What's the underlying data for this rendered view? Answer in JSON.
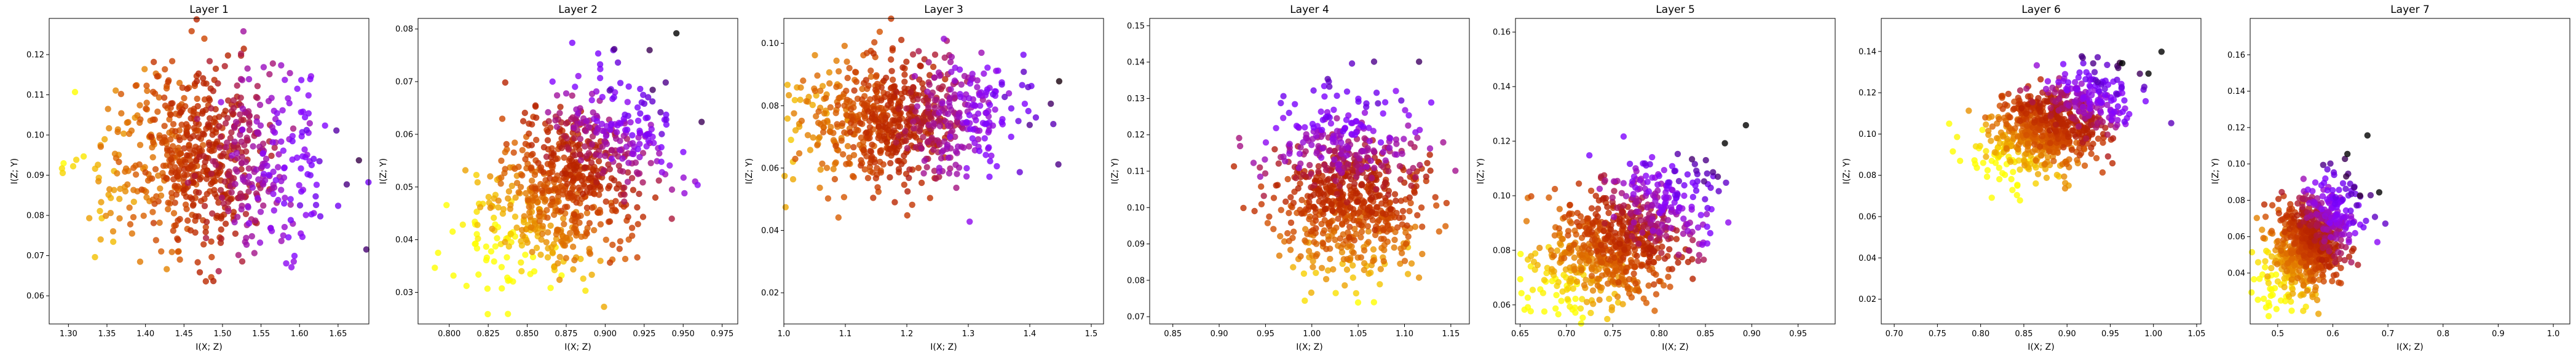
{
  "chart_data": [
    {
      "type": "scatter",
      "title": "Layer 1",
      "xlabel": "I(X; Z)",
      "ylabel": "I(Z; Y)",
      "xlim": [
        1.275,
        1.69
      ],
      "ylim": [
        0.053,
        0.129
      ],
      "xticks": [
        "1.30",
        "1.35",
        "1.40",
        "1.45",
        "1.50",
        "1.55",
        "1.60",
        "1.65"
      ],
      "yticks": [
        "0.06",
        "0.07",
        "0.08",
        "0.09",
        "0.10",
        "0.11",
        "0.12"
      ],
      "cluster": {
        "x_mean": 1.48,
        "x_sd": 0.07,
        "y_mean": 0.094,
        "y_sd": 0.012,
        "direction": "x_increasing"
      },
      "n_points": 800,
      "color_scale": "gnuplot",
      "grid": false
    },
    {
      "type": "scatter",
      "title": "Layer 2",
      "xlabel": "I(X; Z)",
      "ylabel": "I(Z; Y)",
      "xlim": [
        0.78,
        0.985
      ],
      "ylim": [
        0.024,
        0.082
      ],
      "xticks": [
        "0.800",
        "0.825",
        "0.850",
        "0.875",
        "0.900",
        "0.925",
        "0.950",
        "0.975"
      ],
      "yticks": [
        "0.03",
        "0.04",
        "0.05",
        "0.06",
        "0.07",
        "0.08"
      ],
      "cluster": {
        "x_mean": 0.88,
        "x_sd": 0.03,
        "y_mean": 0.052,
        "y_sd": 0.008,
        "direction": "xy_increasing"
      },
      "n_points": 800,
      "color_scale": "gnuplot",
      "grid": false
    },
    {
      "type": "scatter",
      "title": "Layer 3",
      "xlabel": "I(X; Z)",
      "ylabel": "I(Z; Y)",
      "xlim": [
        1.0,
        1.52
      ],
      "ylim": [
        0.01,
        0.108
      ],
      "xticks": [
        "1.0",
        "1.1",
        "1.2",
        "1.3",
        "1.4",
        "1.5"
      ],
      "yticks": [
        "0.02",
        "0.04",
        "0.06",
        "0.08",
        "0.10"
      ],
      "cluster": {
        "x_mean": 1.19,
        "x_sd": 0.09,
        "y_mean": 0.075,
        "y_sd": 0.01,
        "direction": "x_increasing"
      },
      "n_points": 800,
      "color_scale": "gnuplot",
      "grid": false
    },
    {
      "type": "scatter",
      "title": "Layer 4",
      "xlabel": "I(X; Z)",
      "ylabel": "I(Z; Y)",
      "xlim": [
        0.825,
        1.17
      ],
      "ylim": [
        0.068,
        0.152
      ],
      "xticks": [
        "0.85",
        "0.90",
        "0.95",
        "1.00",
        "1.05",
        "1.10",
        "1.15"
      ],
      "yticks": [
        "0.07",
        "0.08",
        "0.09",
        "0.10",
        "0.11",
        "0.12",
        "0.13",
        "0.14",
        "0.15"
      ],
      "cluster": {
        "x_mean": 1.04,
        "x_sd": 0.04,
        "y_mean": 0.105,
        "y_sd": 0.012,
        "direction": "y_increasing"
      },
      "n_points": 800,
      "color_scale": "gnuplot",
      "grid": false
    },
    {
      "type": "scatter",
      "title": "Layer 5",
      "xlabel": "I(X; Z)",
      "ylabel": "I(Z; Y)",
      "xlim": [
        0.645,
        0.99
      ],
      "ylim": [
        0.053,
        0.165
      ],
      "xticks": [
        "0.65",
        "0.70",
        "0.75",
        "0.80",
        "0.85",
        "0.90",
        "0.95"
      ],
      "yticks": [
        "0.06",
        "0.08",
        "0.10",
        "0.12",
        "0.14",
        "0.16"
      ],
      "cluster": {
        "x_mean": 0.76,
        "x_sd": 0.045,
        "y_mean": 0.084,
        "y_sd": 0.012,
        "direction": "xy_increasing"
      },
      "n_points": 800,
      "color_scale": "gnuplot",
      "grid": false
    },
    {
      "type": "scatter",
      "title": "Layer 6",
      "xlabel": "I(X; Z)",
      "ylabel": "I(Z; Y)",
      "xlim": [
        0.685,
        1.055
      ],
      "ylim": [
        0.008,
        0.156
      ],
      "xticks": [
        "0.70",
        "0.75",
        "0.80",
        "0.85",
        "0.90",
        "0.95",
        "1.00",
        "1.05"
      ],
      "yticks": [
        "0.02",
        "0.04",
        "0.06",
        "0.08",
        "0.10",
        "0.12",
        "0.14"
      ],
      "cluster": {
        "x_mean": 0.885,
        "x_sd": 0.04,
        "y_mean": 0.105,
        "y_sd": 0.011,
        "direction": "xy_increasing"
      },
      "n_points": 800,
      "color_scale": "gnuplot",
      "grid": false
    },
    {
      "type": "scatter",
      "title": "Layer 7",
      "xlabel": "I(X; Z)",
      "ylabel": "I(Z; Y)",
      "xlim": [
        0.45,
        1.03
      ],
      "ylim": [
        0.012,
        0.18
      ],
      "xticks": [
        "0.5",
        "0.6",
        "0.7",
        "0.8",
        "0.9",
        "1.0"
      ],
      "yticks": [
        "0.04",
        "0.06",
        "0.08",
        "0.10",
        "0.12",
        "0.14",
        "0.16"
      ],
      "cluster": {
        "x_mean": 0.56,
        "x_sd": 0.04,
        "y_mean": 0.058,
        "y_sd": 0.014,
        "direction": "xy_increasing"
      },
      "n_points": 800,
      "color_scale": "gnuplot",
      "grid": false
    }
  ]
}
